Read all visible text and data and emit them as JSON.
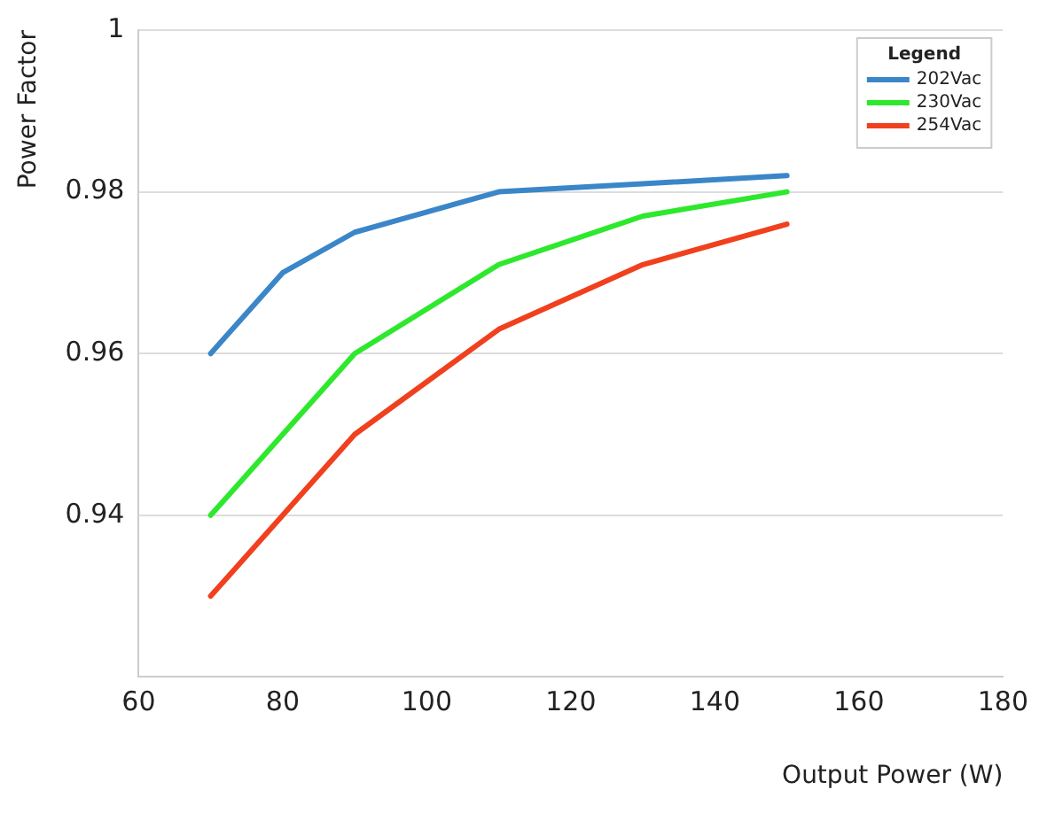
{
  "chart_data": {
    "type": "line",
    "xlabel": "Output Power (W)",
    "ylabel": "Power Factor",
    "legend_title": "Legend",
    "legend": "top right",
    "grid": "y",
    "marker": "none",
    "line_style": "solid",
    "xlim": [
      60,
      180
    ],
    "xticks": [
      60,
      80,
      100,
      120,
      140,
      160,
      180
    ],
    "ylim": [
      0.92,
      1
    ],
    "yticks": [
      {
        "value": 0.92,
        "label": null
      },
      0.94,
      0.96,
      0.98,
      1
    ],
    "series": [
      {
        "name": "202Vac",
        "color": "#3a86c8",
        "x": [
          70,
          80,
          90,
          110,
          130,
          150
        ],
        "values": [
          0.96,
          0.97,
          0.975,
          0.98,
          0.981,
          0.982
        ]
      },
      {
        "name": "230Vac",
        "color": "#2ee82e",
        "x": [
          70,
          80,
          90,
          110,
          130,
          150
        ],
        "values": [
          0.94,
          0.95,
          0.96,
          0.971,
          0.977,
          0.98
        ]
      },
      {
        "name": "254Vac",
        "color": "#f0401e",
        "x": [
          70,
          90,
          110,
          130,
          150
        ],
        "values": [
          0.93,
          0.95,
          0.963,
          0.971,
          0.976
        ]
      }
    ]
  }
}
